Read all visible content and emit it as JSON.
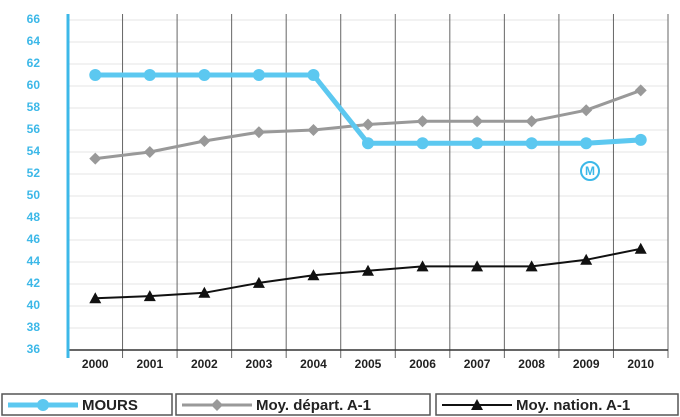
{
  "chart_data": {
    "type": "line",
    "categories": [
      "2000",
      "2001",
      "2002",
      "2003",
      "2004",
      "2005",
      "2006",
      "2007",
      "2008",
      "2009",
      "2010"
    ],
    "series": [
      {
        "name": "MOURS",
        "color": "#5cc8f0",
        "marker": "circle",
        "values": [
          61,
          61,
          61,
          61,
          61,
          54.8,
          54.8,
          54.8,
          54.8,
          54.8,
          55.1
        ]
      },
      {
        "name": "Moy. départ. A-1",
        "color": "#999999",
        "marker": "diamond",
        "values": [
          53.4,
          54.0,
          55.0,
          55.8,
          56.0,
          56.5,
          56.8,
          56.8,
          56.8,
          57.8,
          59.6
        ]
      },
      {
        "name": "Moy. nation. A-1",
        "color": "#111111",
        "marker": "triangle",
        "values": [
          40.7,
          40.9,
          41.2,
          42.1,
          42.8,
          43.2,
          43.6,
          43.6,
          43.6,
          44.2,
          45.2
        ]
      }
    ],
    "ylim": [
      36,
      66
    ],
    "yticks": [
      36,
      38,
      40,
      42,
      44,
      46,
      48,
      50,
      52,
      54,
      56,
      58,
      60,
      62,
      64,
      66
    ],
    "grid": true,
    "annotation": "M"
  }
}
